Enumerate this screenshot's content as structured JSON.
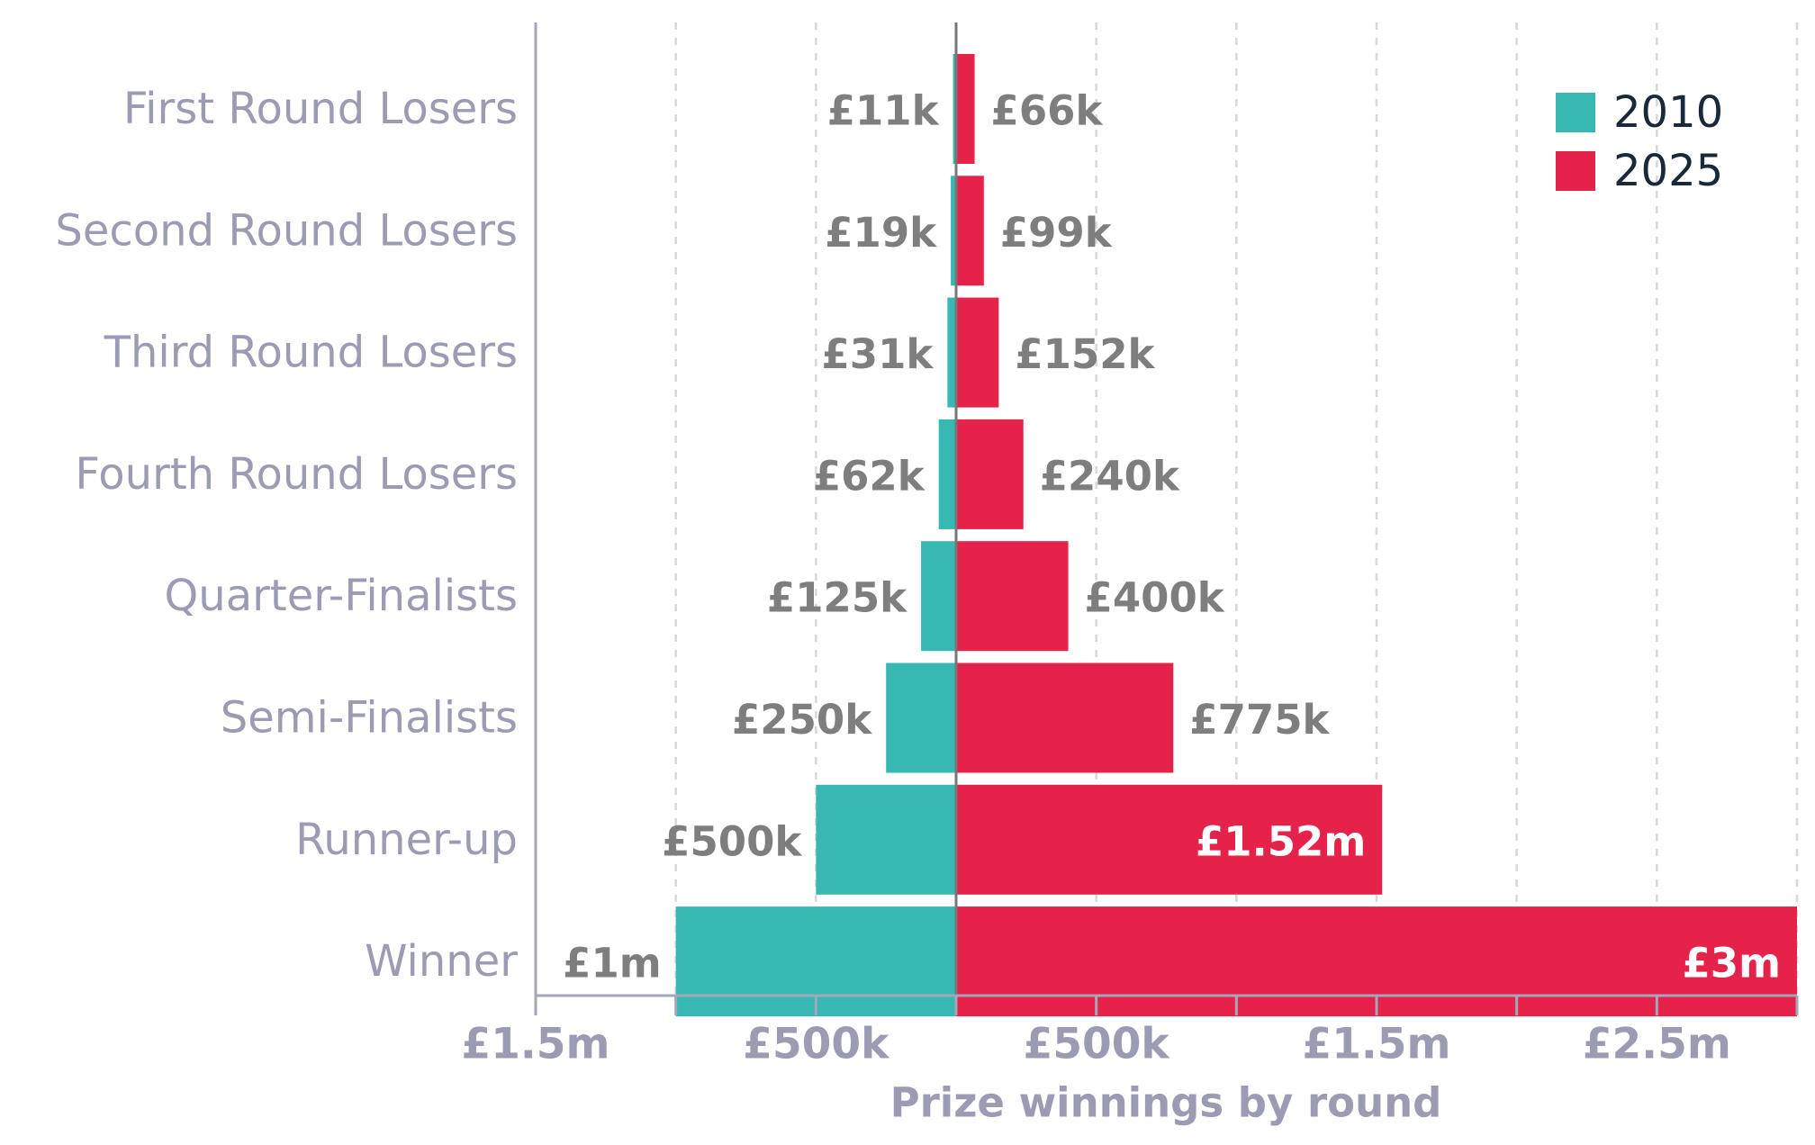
{
  "chart_data": {
    "type": "bar",
    "orientation": "horizontal-diverging",
    "xlabel": "Prize winnings by round",
    "xlim": [
      -1500000,
      3000000
    ],
    "grid": true,
    "legend_position": "top-right",
    "x_tick_values": [
      -1500000,
      -1000000,
      -500000,
      0,
      500000,
      1000000,
      1500000,
      2000000,
      2500000,
      3000000
    ],
    "x_tick_labels": [
      {
        "value": -1500000,
        "label": "£1.5m"
      },
      {
        "value": -500000,
        "label": "£500k"
      },
      {
        "value": 500000,
        "label": "£500k"
      },
      {
        "value": 1500000,
        "label": "£1.5m"
      },
      {
        "value": 2500000,
        "label": "£2.5m"
      }
    ],
    "categories": [
      "First Round Losers",
      "Second Round Losers",
      "Third Round Losers",
      "Fourth Round Losers",
      "Quarter-Finalists",
      "Semi-Finalists",
      "Runner-up",
      "Winner"
    ],
    "series": [
      {
        "name": "2010",
        "color": "#38b8b2",
        "direction": "left",
        "values": [
          11000,
          19000,
          31000,
          62000,
          125000,
          250000,
          500000,
          1000000
        ],
        "labels": [
          "£11k",
          "£19k",
          "£31k",
          "£62k",
          "£125k",
          "£250k",
          "£500k",
          "£1m"
        ]
      },
      {
        "name": "2025",
        "color": "#e5224a",
        "direction": "right",
        "values": [
          66000,
          99000,
          152000,
          240000,
          400000,
          775000,
          1520000,
          3000000
        ],
        "labels": [
          "£66k",
          "£99k",
          "£152k",
          "£240k",
          "£400k",
          "£775k",
          "£1.52m",
          "£3m"
        ]
      }
    ]
  },
  "colors": {
    "label_gray": "#9b9cb3",
    "value_gray": "#7e7e7e",
    "axis": "#a5a6ba",
    "grid": "#d8d8d8",
    "legend_text": "#17293a"
  }
}
